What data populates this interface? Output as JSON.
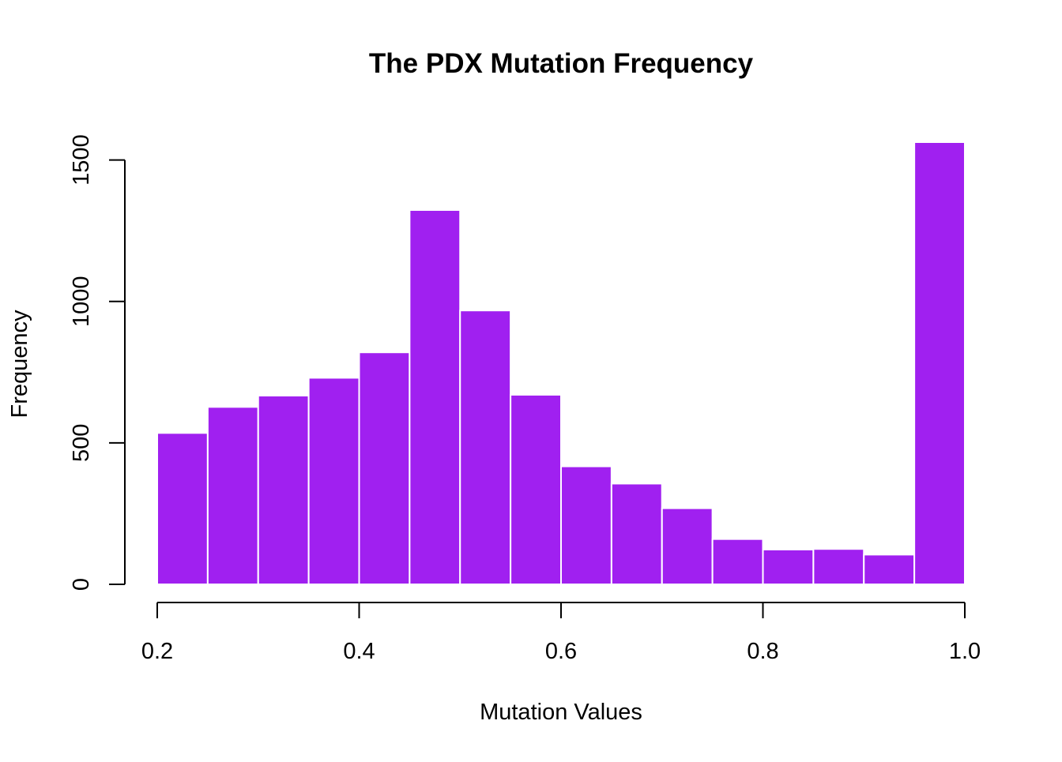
{
  "chart_data": {
    "type": "bar",
    "title": "The PDX Mutation Frequency",
    "xlabel": "Mutation Values",
    "ylabel": "Frequency",
    "bin_edges": [
      0.2,
      0.25,
      0.3,
      0.35,
      0.4,
      0.45,
      0.5,
      0.55,
      0.6,
      0.65,
      0.7,
      0.75,
      0.8,
      0.85,
      0.9,
      0.95,
      1.0
    ],
    "values": [
      535,
      627,
      667,
      730,
      820,
      1323,
      968,
      670,
      417,
      356,
      269,
      160,
      123,
      125,
      105,
      1563
    ],
    "xlim": [
      0.2,
      1.0
    ],
    "ylim": [
      0,
      1563
    ],
    "xticks": [
      "0.2",
      "0.4",
      "0.6",
      "0.8",
      "1.0"
    ],
    "xtick_values": [
      0.2,
      0.4,
      0.6,
      0.8,
      1.0
    ],
    "yticks": [
      "0",
      "500",
      "1000",
      "1500"
    ],
    "ytick_values": [
      0,
      500,
      1000,
      1500
    ],
    "bar_color": "#A020F0",
    "bar_edge_color": "#ffffff",
    "grid": false,
    "legend": "none"
  }
}
